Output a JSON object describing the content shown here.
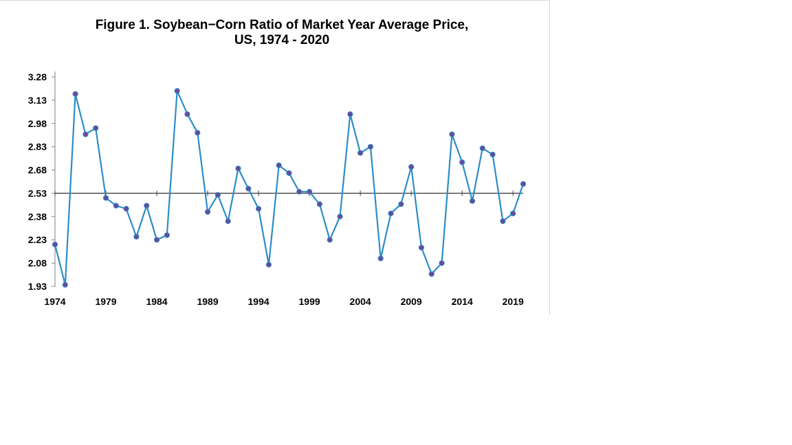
{
  "chart_data": {
    "type": "line",
    "title_lines": [
      "Figure 1.  Soybean−Corn Ratio of Market Year Average Price,",
      "US,  1974 - 2020"
    ],
    "xlabel": "",
    "ylabel": "",
    "x_ticks": [
      "1974",
      "1979",
      "1984",
      "1989",
      "1994",
      "1999",
      "2004",
      "2009",
      "2014",
      "2019"
    ],
    "y_ticks": [
      "3.28",
      "3.13",
      "2.98",
      "2.83",
      "2.68",
      "2.53",
      "2.38",
      "2.23",
      "2.08",
      "1.93"
    ],
    "xlim": [
      1974,
      2020
    ],
    "ylim": [
      1.93,
      3.28
    ],
    "reference_line": 2.53,
    "grid": false,
    "colors": {
      "line": "#2a8cc8",
      "marker": "#6a4a9a",
      "reference": "#404040",
      "axis": "#808080"
    },
    "series": [
      {
        "x": [
          1974,
          1975,
          1976,
          1977,
          1978,
          1979,
          1980,
          1981,
          1982,
          1983,
          1984,
          1985,
          1986,
          1987,
          1988,
          1989,
          1990,
          1991,
          1992,
          1993,
          1994,
          1995,
          1996,
          1997,
          1998,
          1999,
          2000,
          2001,
          2002,
          2003,
          2004,
          2005,
          2006,
          2007,
          2008,
          2009,
          2010,
          2011,
          2012,
          2013,
          2014,
          2015,
          2016,
          2017,
          2018,
          2019,
          2020
        ],
        "values": [
          2.2,
          1.94,
          3.17,
          2.91,
          2.95,
          2.5,
          2.45,
          2.43,
          2.25,
          2.45,
          2.23,
          2.26,
          3.19,
          3.04,
          2.92,
          2.41,
          2.52,
          2.35,
          2.69,
          2.56,
          2.43,
          2.07,
          2.71,
          2.66,
          2.54,
          2.54,
          2.46,
          2.23,
          2.38,
          3.04,
          2.79,
          2.83,
          2.11,
          2.4,
          2.46,
          2.7,
          2.18,
          2.01,
          2.08,
          2.91,
          2.73,
          2.48,
          2.82,
          2.78,
          2.35,
          2.4,
          2.59
        ]
      }
    ]
  }
}
